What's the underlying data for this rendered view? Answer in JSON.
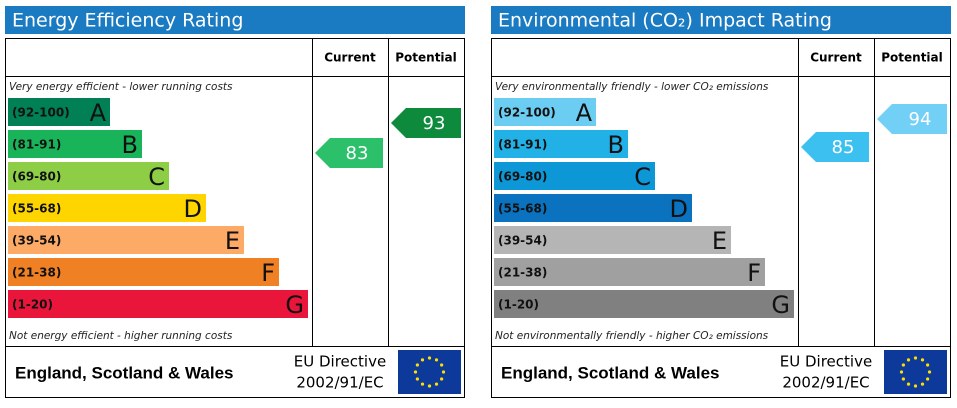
{
  "panels": [
    {
      "title": "Energy Efficiency Rating",
      "columns": [
        "Current",
        "Potential"
      ],
      "top_note": "Very energy efficient - lower running costs",
      "bands": [
        {
          "range": "(92-100)",
          "letter": "A",
          "color": "#008054"
        },
        {
          "range": "(81-91)",
          "letter": "B",
          "color": "#19b459"
        },
        {
          "range": "(69-80)",
          "letter": "C",
          "color": "#8dce46"
        },
        {
          "range": "(55-68)",
          "letter": "D",
          "color": "#ffd500"
        },
        {
          "range": "(39-54)",
          "letter": "E",
          "color": "#fcaa65"
        },
        {
          "range": "(21-38)",
          "letter": "F",
          "color": "#ef8023"
        },
        {
          "range": "(1-20)",
          "letter": "G",
          "color": "#e9153b"
        }
      ],
      "bottom_note": "Not energy efficient - higher running costs",
      "current": 83,
      "current_color": "#2cc06a",
      "potential": 93,
      "potential_color": "#0d8a3c",
      "region": "England, Scotland & Wales",
      "directive": [
        "EU Directive",
        "2002/91/EC"
      ]
    },
    {
      "title": "Environmental (CO₂) Impact Rating",
      "columns": [
        "Current",
        "Potential"
      ],
      "top_note": "Very environmentally friendly - lower CO₂ emissions",
      "bands": [
        {
          "range": "(92-100)",
          "letter": "A",
          "color": "#6ccdf3"
        },
        {
          "range": "(81-91)",
          "letter": "B",
          "color": "#22b1e6"
        },
        {
          "range": "(69-80)",
          "letter": "C",
          "color": "#0d97d6"
        },
        {
          "range": "(55-68)",
          "letter": "D",
          "color": "#0a72bf"
        },
        {
          "range": "(39-54)",
          "letter": "E",
          "color": "#b5b5b5"
        },
        {
          "range": "(21-38)",
          "letter": "F",
          "color": "#a0a0a0"
        },
        {
          "range": "(1-20)",
          "letter": "G",
          "color": "#808080"
        }
      ],
      "bottom_note": "Not environmentally friendly - higher CO₂ emissions",
      "current": 85,
      "current_color": "#3cc0f0",
      "potential": 94,
      "potential_color": "#72cff5",
      "region": "England, Scotland & Wales",
      "directive": [
        "EU Directive",
        "2002/91/EC"
      ]
    }
  ]
}
